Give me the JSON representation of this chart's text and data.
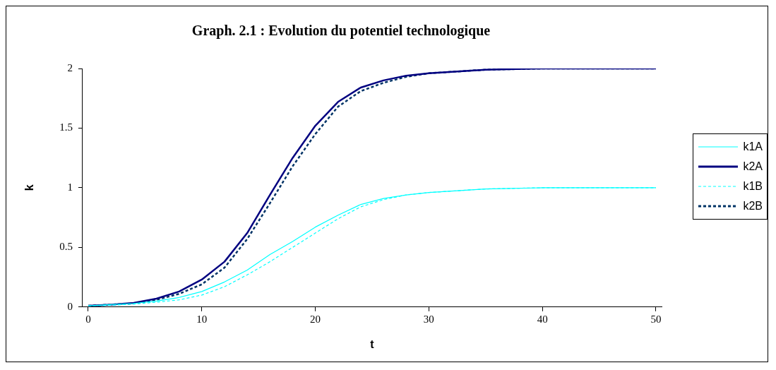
{
  "chart_data": {
    "type": "line",
    "title": "Graph. 2.1 : Evolution du potentiel technologique",
    "xlabel": "t",
    "ylabel": "k",
    "xlim": [
      -0.5,
      50.5
    ],
    "xticks": [
      0,
      10,
      20,
      30,
      40,
      50
    ],
    "ylim": [
      0,
      2
    ],
    "yticks": [
      0,
      0.5,
      1,
      1.5,
      2
    ],
    "grid": false,
    "legend": "right",
    "marker": "none",
    "x": [
      0,
      2,
      4,
      6,
      8,
      10,
      12,
      14,
      16,
      18,
      20,
      22,
      24,
      26,
      28,
      30,
      35,
      40,
      45,
      50
    ],
    "series": [
      {
        "name": "k1A",
        "color": "#00ffff",
        "line_style": "solid",
        "values": [
          0.01,
          0.02,
          0.03,
          0.05,
          0.08,
          0.13,
          0.21,
          0.31,
          0.44,
          0.55,
          0.67,
          0.77,
          0.86,
          0.91,
          0.94,
          0.96,
          0.99,
          1,
          1,
          1
        ]
      },
      {
        "name": "k2A",
        "color": "#000080",
        "line_style": "solid",
        "values": [
          0.01,
          0.02,
          0.035,
          0.07,
          0.13,
          0.23,
          0.38,
          0.62,
          0.94,
          1.25,
          1.52,
          1.72,
          1.84,
          1.9,
          1.94,
          1.96,
          1.99,
          2,
          2,
          2
        ]
      },
      {
        "name": "k1B",
        "color": "#00ffff",
        "line_style": "dashed",
        "values": [
          0.01,
          0.015,
          0.025,
          0.04,
          0.06,
          0.1,
          0.17,
          0.27,
          0.38,
          0.5,
          0.62,
          0.74,
          0.84,
          0.9,
          0.94,
          0.96,
          0.99,
          1,
          1,
          1
        ]
      },
      {
        "name": "k2B",
        "color": "#003366",
        "line_style": "dashed",
        "values": [
          0.01,
          0.02,
          0.03,
          0.06,
          0.11,
          0.19,
          0.33,
          0.57,
          0.87,
          1.18,
          1.45,
          1.68,
          1.81,
          1.88,
          1.93,
          1.96,
          1.99,
          2,
          2,
          2
        ]
      }
    ]
  }
}
